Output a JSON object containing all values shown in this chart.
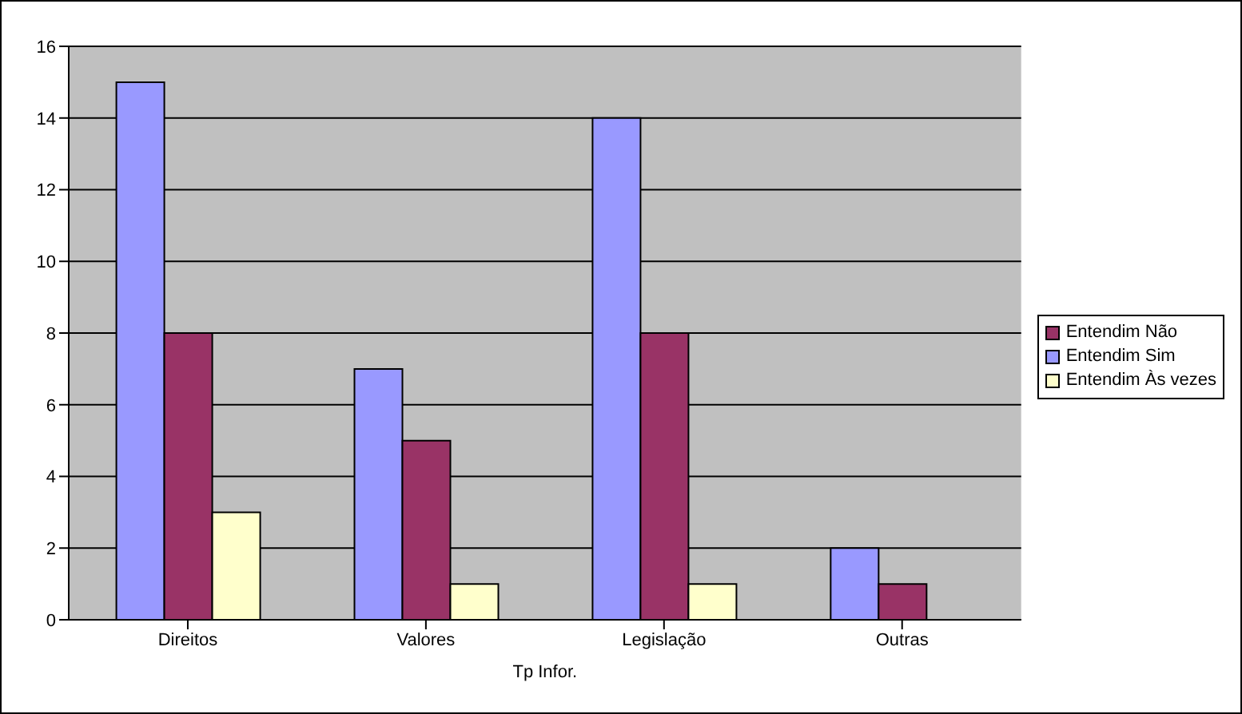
{
  "chart_data": {
    "type": "bar",
    "xlabel": "Tp Infor.",
    "categories": [
      "Direitos",
      "Valores",
      "Legislação",
      "Outras"
    ],
    "series": [
      {
        "name": "Entendim Sim",
        "color": "#9999ff",
        "values": [
          15,
          7,
          14,
          2
        ]
      },
      {
        "name": "Entendim Não",
        "color": "#993366",
        "values": [
          8,
          5,
          8,
          1
        ]
      },
      {
        "name": "Entendim Às vezes",
        "color": "#ffffcc",
        "values": [
          3,
          1,
          1,
          0
        ]
      }
    ],
    "ylim": [
      0,
      16
    ],
    "yticks": [
      0,
      2,
      4,
      6,
      8,
      10,
      12,
      14,
      16
    ],
    "grid": "y",
    "legend": "right"
  }
}
